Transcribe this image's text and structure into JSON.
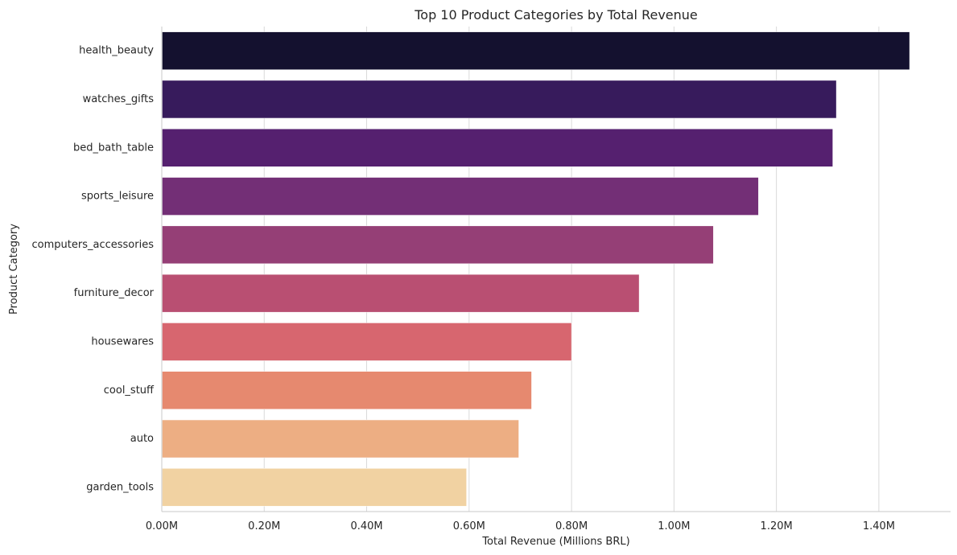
{
  "chart_data": {
    "type": "bar",
    "orientation": "horizontal",
    "title": "Top 10 Product Categories by Total Revenue",
    "xlabel": "Total Revenue (Millions BRL)",
    "ylabel": "Product Category",
    "categories": [
      "health_beauty",
      "watches_gifts",
      "bed_bath_table",
      "sports_leisure",
      "computers_accessories",
      "furniture_decor",
      "housewares",
      "cool_stuff",
      "auto",
      "garden_tools"
    ],
    "values": [
      1.46,
      1.317,
      1.31,
      1.165,
      1.077,
      0.932,
      0.8,
      0.722,
      0.697,
      0.595
    ],
    "value_unit": "millions BRL",
    "xlim": [
      0,
      1.54
    ],
    "xticks": [
      0,
      0.2,
      0.4,
      0.6,
      0.8,
      1.0,
      1.2,
      1.4
    ],
    "xtick_labels": [
      "0.00M",
      "0.20M",
      "0.40M",
      "0.60M",
      "0.80M",
      "1.00M",
      "1.20M",
      "1.40M"
    ],
    "colors": [
      "#14112f",
      "#371b5c",
      "#55206f",
      "#732f76",
      "#953f76",
      "#b94f72",
      "#d7666f",
      "#e6896f",
      "#edae83",
      "#f1d2a2"
    ],
    "grid": "vertical",
    "legend": "none"
  }
}
